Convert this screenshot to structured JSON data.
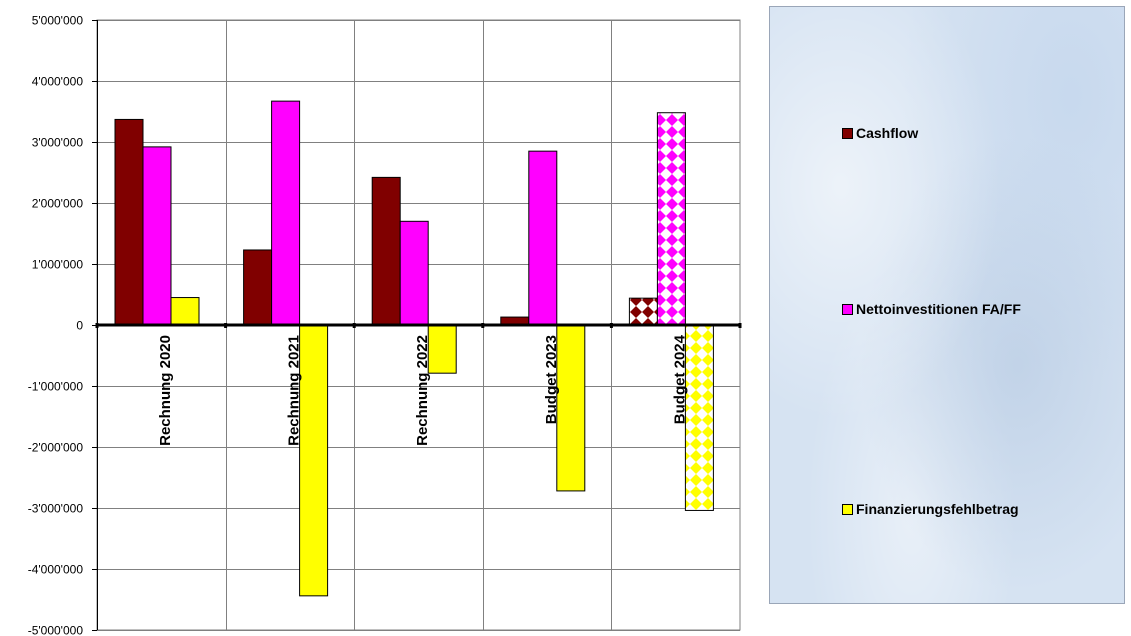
{
  "chart_data": {
    "type": "bar",
    "categories": [
      "Rechnung 2020",
      "Rechnung 2021",
      "Rechnung 2022",
      "Budget 2023",
      "Budget 2024"
    ],
    "series": [
      {
        "name": "Cashflow",
        "color": "#800000",
        "values": [
          3370000,
          1230000,
          2420000,
          130000,
          440000
        ]
      },
      {
        "name": "Nettoinvestitionen FA/FF",
        "color": "#ff00ff",
        "values": [
          2920000,
          3670000,
          1700000,
          2850000,
          3480000
        ]
      },
      {
        "name": "Finanzierungsfehlbetrag",
        "color": "#ffff00",
        "values": [
          450000,
          -4440000,
          -790000,
          -2720000,
          -3040000
        ]
      }
    ],
    "patterned_category": "Budget 2024",
    "ylim": [
      -5000000,
      5000000
    ],
    "yticks": [
      5000000,
      4000000,
      3000000,
      2000000,
      1000000,
      0,
      -1000000,
      -2000000,
      -3000000,
      -4000000,
      -5000000
    ],
    "ytick_labels": [
      "5'000'000",
      "4'000'000",
      "3'000'000",
      "2'000'000",
      "1'000'000",
      "0",
      "-1'000'000",
      "-2'000'000",
      "-3'000'000",
      "-4'000'000",
      "-5'000'000"
    ],
    "grid": true,
    "legend_position": "right"
  }
}
